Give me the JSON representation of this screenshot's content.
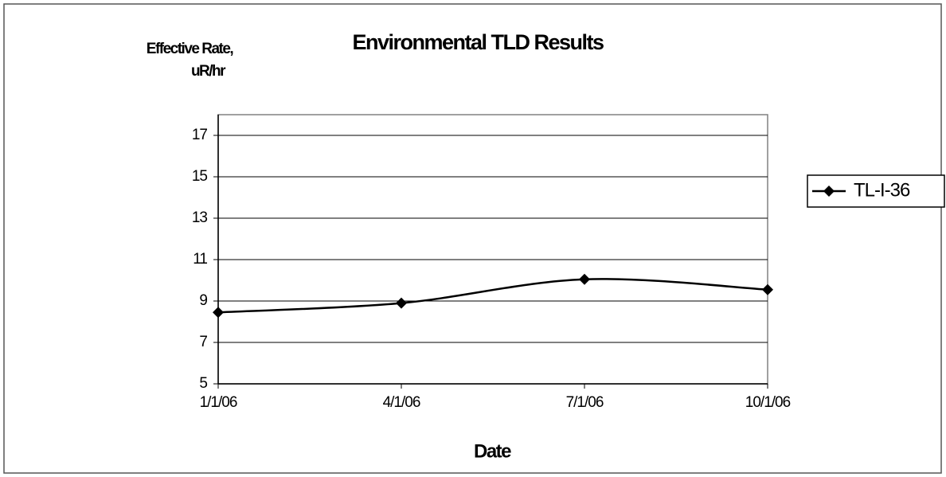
{
  "chart_data": {
    "type": "line",
    "title": "Environmental TLD Results",
    "ylabel": [
      "Effective Rate,",
      "uR/hr"
    ],
    "xlabel": "Date",
    "categories": [
      "1/1/06",
      "4/1/06",
      "7/1/06",
      "10/1/06"
    ],
    "series": [
      {
        "name": "TL-I-36",
        "color": "#000000",
        "values": [
          8.45,
          8.9,
          10.05,
          9.55
        ]
      }
    ],
    "ylim": [
      5,
      18
    ],
    "yticks": [
      5,
      7,
      9,
      11,
      13,
      15,
      17
    ],
    "grid": true,
    "legend": "right",
    "smooth": true
  }
}
